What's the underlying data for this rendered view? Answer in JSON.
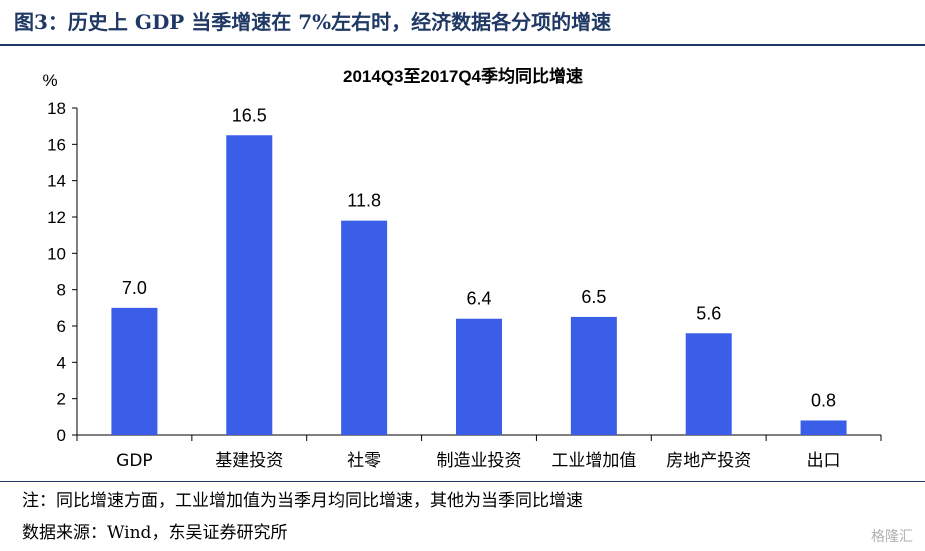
{
  "figure_title": "图3：历史上 GDP 当季增速在 7%左右时，经济数据各分项的增速",
  "note": "注：同比增速方面，工业增加值为当季月均同比增速，其他为当季同比增速",
  "source": "数据来源：Wind，东吴证券研究所",
  "watermark": "格隆汇",
  "colors": {
    "bar": "#3b5ee8",
    "title": "#1f3864"
  },
  "chart_data": {
    "type": "bar",
    "title": "2014Q3至2017Q4季均同比增速",
    "ylabel": "%",
    "xlabel": "",
    "categories": [
      "GDP",
      "基建投资",
      "社零",
      "制造业投资",
      "工业增加值",
      "房地产投资",
      "出口"
    ],
    "values": [
      7.0,
      16.5,
      11.8,
      6.4,
      6.5,
      5.6,
      0.8
    ],
    "value_labels": [
      "7.0",
      "16.5",
      "11.8",
      "6.4",
      "6.5",
      "5.6",
      "0.8"
    ],
    "ylim": [
      0,
      18
    ],
    "yticks": [
      0,
      2,
      4,
      6,
      8,
      10,
      12,
      14,
      16,
      18
    ],
    "grid": false,
    "legend": "none"
  }
}
